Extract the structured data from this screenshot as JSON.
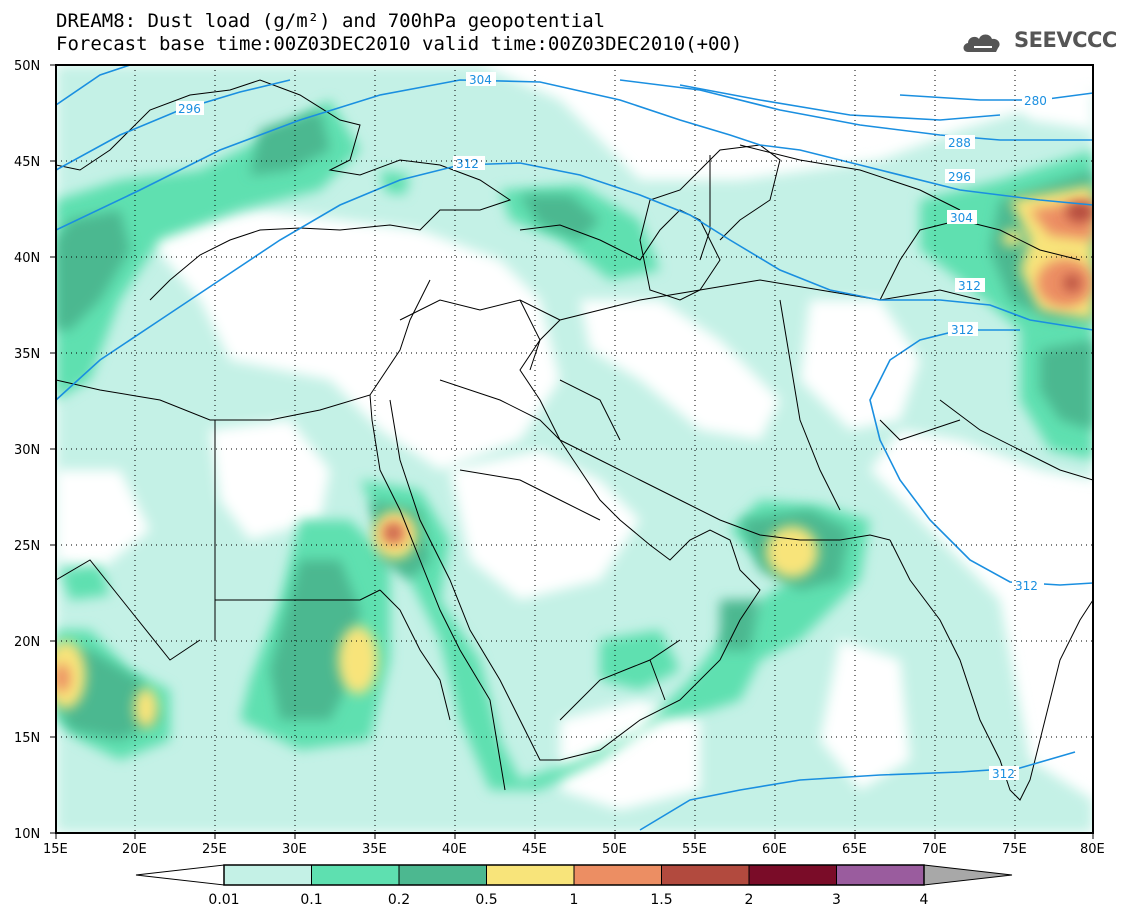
{
  "header": {
    "title_line1": "DREAM8: Dust load (g/m²) and 700hPa geopotential",
    "title_line2": "Forecast base time:00Z03DEC2010 valid time:00Z03DEC2010(+00)"
  },
  "logo": {
    "text": "SEEVCCC",
    "icon": "cloud-icon"
  },
  "map": {
    "lon_labels": [
      "15E",
      "20E",
      "25E",
      "30E",
      "35E",
      "40E",
      "45E",
      "50E",
      "55E",
      "60E",
      "65E",
      "70E",
      "75E",
      "80E"
    ],
    "lat_labels": [
      "50N",
      "45N",
      "40N",
      "35N",
      "30N",
      "25N",
      "20N",
      "15N",
      "10N"
    ],
    "contour_labels": [
      "304",
      "296",
      "280",
      "312",
      "288",
      "296",
      "304",
      "312",
      "312",
      "312",
      "312"
    ]
  },
  "legend": {
    "thresholds": [
      "0.01",
      "0.1",
      "0.2",
      "0.5",
      "1",
      "1.5",
      "2",
      "3",
      "4"
    ],
    "colors": [
      "#c4f1e6",
      "#5ee0b0",
      "#4cb890",
      "#f8e47a",
      "#ec8e63",
      "#b24a3e",
      "#7a0c28",
      "#9a5c9e"
    ]
  },
  "colors": {
    "contour": "#1a8fe0",
    "border": "#000000"
  }
}
